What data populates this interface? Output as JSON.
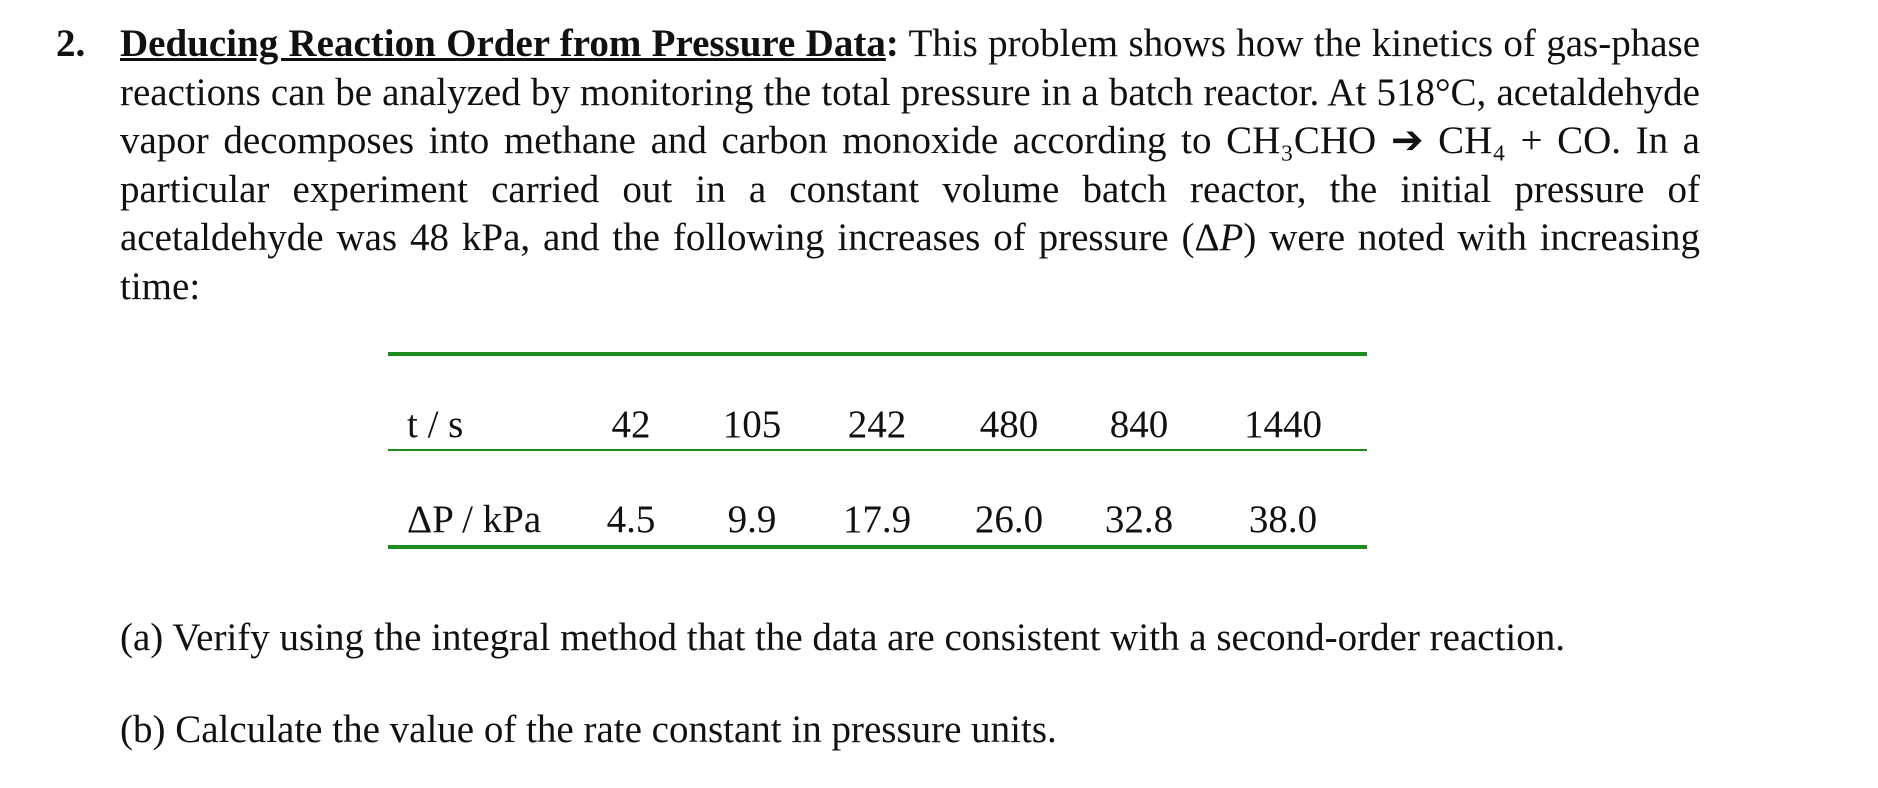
{
  "problem": {
    "number": "2.",
    "title": "Deducing Reaction Order from Pressure Data",
    "title_end": ":",
    "text_before": " This problem shows how the kinetics of gas-phase reactions can be analyzed by monitoring the total pressure in a batch reactor. At 518°C, acetaldehyde vapor decomposes into methane and carbon monoxide according to CH₃CHO ➔ CH₄ + CO. In a particular experiment carried out in a constant volume batch reactor, the initial pressure of acetaldehyde was 48 kPa, and the following increases of pressure (Δ",
    "text_italic": "P",
    "text_after": ") were noted with increasing time:"
  },
  "table": {
    "rows": [
      [
        "t / s",
        "42",
        "105",
        "242",
        "480",
        "840",
        "1440"
      ],
      [
        "ΔP / kPa",
        "4.5",
        "9.9",
        "17.9",
        "26.0",
        "32.8",
        "38.0"
      ]
    ]
  },
  "parts": [
    "(a) Verify using the integral method that the data are consistent with a second-order reaction.",
    "(b) Calculate the value of the rate constant in pressure units."
  ]
}
